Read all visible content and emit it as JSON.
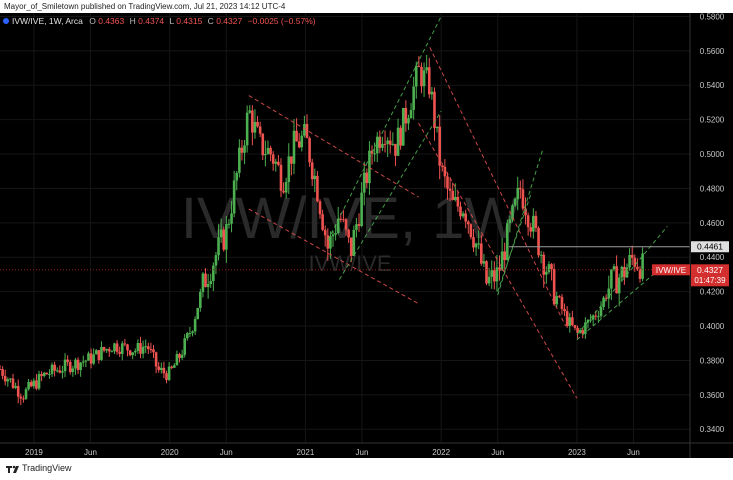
{
  "publisher_line": "Mayor_of_Smiletown published on TradingView.com, Jul 21, 2023 14:12 UTC-4",
  "legend": {
    "symbol": "IVW/IVE, 1W, Arca",
    "o_label": "O",
    "o_value": "0.4363",
    "h_label": "H",
    "h_value": "0.4374",
    "l_label": "L",
    "l_value": "0.4315",
    "c_label": "C",
    "c_value": "0.4327",
    "change": "−0.0025 (−0.57%)"
  },
  "watermark": {
    "big": "IVW/IVE, 1W",
    "small": "IVW/IVE"
  },
  "price_label": {
    "symbol": "IVW/IVE",
    "price": "0.4327",
    "countdown": "01:47:39"
  },
  "level_label": "0.4461",
  "footer": {
    "brand": "TradingView"
  },
  "colors": {
    "up": "#26a69a",
    "down": "#ef5350",
    "up_body": "#4caf50",
    "background": "#000000",
    "price_tag": "#d32f2f",
    "channel_red": "#e04f4f",
    "channel_green": "#4caf50"
  },
  "chart_data": {
    "type": "candlestick",
    "x_ticks": [
      "2019",
      "Jun",
      "2020",
      "Jun",
      "2021",
      "Jun",
      "2022",
      "Jun",
      "2023",
      "Jun"
    ],
    "y_ticks": [
      "0.5800",
      "0.5600",
      "0.5400",
      "0.5200",
      "0.5000",
      "0.4800",
      "0.4600",
      "0.4400",
      "0.4200",
      "0.4000",
      "0.3800",
      "0.3600",
      "0.3400"
    ],
    "ylim": [
      0.332,
      0.582
    ],
    "xlim": [
      "2018-10",
      "2023-11"
    ],
    "horizontal_level": 0.4461,
    "last_close": 0.4327,
    "close_path": [
      [
        "2018-10",
        0.375
      ],
      [
        "2018-12",
        0.36
      ],
      [
        "2019-02",
        0.372
      ],
      [
        "2019-04",
        0.377
      ],
      [
        "2019-06",
        0.381
      ],
      [
        "2019-08",
        0.389
      ],
      [
        "2019-10",
        0.386
      ],
      [
        "2019-11",
        0.389
      ],
      [
        "2019-12",
        0.374
      ],
      [
        "2020-01",
        0.372
      ],
      [
        "2020-02",
        0.384
      ],
      [
        "2020-03",
        0.4
      ],
      [
        "2020-04",
        0.425
      ],
      [
        "2020-05",
        0.44
      ],
      [
        "2020-06",
        0.455
      ],
      [
        "2020-07",
        0.49
      ],
      [
        "2020-08",
        0.525
      ],
      [
        "2020-09",
        0.505
      ],
      [
        "2020-10",
        0.5
      ],
      [
        "2020-11",
        0.485
      ],
      [
        "2020-12",
        0.505
      ],
      [
        "2021-01",
        0.51
      ],
      [
        "2021-02",
        0.482
      ],
      [
        "2021-03",
        0.445
      ],
      [
        "2021-04",
        0.465
      ],
      [
        "2021-05",
        0.443
      ],
      [
        "2021-06",
        0.475
      ],
      [
        "2021-07",
        0.505
      ],
      [
        "2021-08",
        0.515
      ],
      [
        "2021-09",
        0.505
      ],
      [
        "2021-10",
        0.525
      ],
      [
        "2021-11",
        0.548
      ],
      [
        "2021-12",
        0.54
      ],
      [
        "2022-01",
        0.49
      ],
      [
        "2022-02",
        0.47
      ],
      [
        "2022-03",
        0.47
      ],
      [
        "2022-04",
        0.45
      ],
      [
        "2022-05",
        0.425
      ],
      [
        "2022-06",
        0.43
      ],
      [
        "2022-07",
        0.455
      ],
      [
        "2022-08",
        0.48
      ],
      [
        "2022-09",
        0.46
      ],
      [
        "2022-10",
        0.44
      ],
      [
        "2022-11",
        0.42
      ],
      [
        "2022-12",
        0.405
      ],
      [
        "2023-01",
        0.395
      ],
      [
        "2023-02",
        0.402
      ],
      [
        "2023-03",
        0.41
      ],
      [
        "2023-04",
        0.425
      ],
      [
        "2023-05",
        0.43
      ],
      [
        "2023-06",
        0.44
      ],
      [
        "2023-07",
        0.4327
      ]
    ],
    "channels": [
      {
        "color": "red",
        "lines": [
          [
            [
              "2020-08",
              0.534
            ],
            [
              "2021-11",
              0.475
            ]
          ],
          [
            [
              "2020-08",
              0.468
            ],
            [
              "2021-11",
              0.413
            ]
          ]
        ]
      },
      {
        "color": "green",
        "lines": [
          [
            [
              "2021-03",
              0.45
            ],
            [
              "2022-01",
              0.58
            ]
          ],
          [
            [
              "2021-04",
              0.427
            ],
            [
              "2022-01",
              0.525
            ]
          ]
        ]
      },
      {
        "color": "red",
        "lines": [
          [
            [
              "2021-12",
              0.562
            ],
            [
              "2022-12",
              0.4
            ]
          ],
          [
            [
              "2021-11",
              0.518
            ],
            [
              "2023-01",
              0.358
            ]
          ]
        ]
      },
      {
        "color": "green",
        "lines": [
          [
            [
              "2022-06",
              0.418
            ],
            [
              "2022-10",
              0.503
            ]
          ],
          [
            [
              "2022-06",
              0.42
            ],
            [
              "2022-09",
              0.478
            ]
          ]
        ]
      },
      {
        "color": "green",
        "lines": [
          [
            [
              "2023-01",
              0.395
            ],
            [
              "2023-09",
              0.458
            ]
          ],
          [
            [
              "2023-01",
              0.392
            ],
            [
              "2023-09",
              0.437
            ]
          ]
        ]
      }
    ]
  }
}
